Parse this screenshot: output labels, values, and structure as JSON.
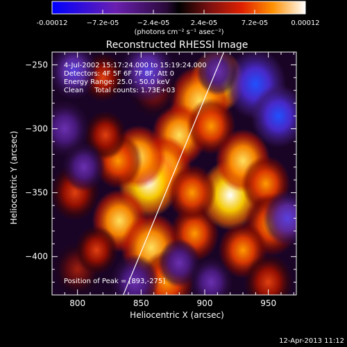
{
  "colorbar": {
    "ticks": [
      "-0.00012",
      "−7.2e-05",
      "−2.4e-05",
      "2.4e-05",
      "7.2e-05",
      "0.00012"
    ],
    "unit_label": "(photons cm⁻² s⁻¹ asec⁻²)",
    "range": [
      -0.00012,
      0.00012
    ]
  },
  "chart_data": {
    "type": "heatmap",
    "title": "Reconstructed RHESSI Image",
    "xlabel": "Heliocentric X (arcsec)",
    "ylabel": "Heliocentric Y (arcsec)",
    "xlim": [
      780,
      972
    ],
    "ylim": [
      -430,
      -240
    ],
    "xticks": [
      800,
      850,
      900,
      950
    ],
    "yticks": [
      -250,
      -300,
      -350,
      -400
    ],
    "limb_line": [
      [
        836,
        -430
      ],
      [
        915,
        -240
      ]
    ],
    "info": [
      "4-Jul-2002 15:17:24.000 to 15:19:24.000",
      "Detectors: 4F 5F 6F 7F 8F, Att 0",
      "Energy Range: 25.0 - 50.0 keV",
      "Clean     Total counts: 1.73E+03"
    ],
    "peak_label": "Position of Peak = [893,-275]",
    "peak": [
      893,
      -275
    ],
    "blobs": [
      {
        "x": 910,
        "y": -263,
        "v": 1.0,
        "s": 9
      },
      {
        "x": 896,
        "y": -278,
        "v": 0.85,
        "s": 10
      },
      {
        "x": 880,
        "y": -305,
        "v": 0.75,
        "s": 9
      },
      {
        "x": 868,
        "y": -330,
        "v": 0.8,
        "s": 9
      },
      {
        "x": 856,
        "y": -342,
        "v": 0.9,
        "s": 10
      },
      {
        "x": 848,
        "y": -322,
        "v": 0.75,
        "s": 9
      },
      {
        "x": 832,
        "y": -325,
        "v": 0.55,
        "s": 8
      },
      {
        "x": 822,
        "y": -305,
        "v": 0.5,
        "s": 7
      },
      {
        "x": 833,
        "y": -372,
        "v": 0.75,
        "s": 9
      },
      {
        "x": 858,
        "y": -393,
        "v": 0.85,
        "s": 10
      },
      {
        "x": 870,
        "y": -420,
        "v": 0.65,
        "s": 9
      },
      {
        "x": 892,
        "y": -382,
        "v": 0.6,
        "s": 8
      },
      {
        "x": 920,
        "y": -352,
        "v": 0.95,
        "s": 10
      },
      {
        "x": 930,
        "y": -325,
        "v": 0.85,
        "s": 9
      },
      {
        "x": 948,
        "y": -343,
        "v": 0.6,
        "s": 8
      },
      {
        "x": 952,
        "y": -375,
        "v": 0.7,
        "s": 9
      },
      {
        "x": 930,
        "y": -395,
        "v": 0.55,
        "s": 8
      },
      {
        "x": 905,
        "y": -298,
        "v": 0.7,
        "s": 8
      },
      {
        "x": 950,
        "y": -420,
        "v": 0.45,
        "s": 8
      },
      {
        "x": 798,
        "y": -350,
        "v": 0.45,
        "s": 8
      },
      {
        "x": 820,
        "y": -260,
        "v": 0.35,
        "s": 7
      },
      {
        "x": 860,
        "y": -270,
        "v": 0.3,
        "s": 8
      },
      {
        "x": 800,
        "y": -410,
        "v": 0.3,
        "s": 8
      },
      {
        "x": 890,
        "y": -350,
        "v": 0.55,
        "s": 8
      },
      {
        "x": 815,
        "y": -395,
        "v": 0.4,
        "s": 7
      },
      {
        "x": 797,
        "y": -255,
        "v": -0.4,
        "s": 8
      },
      {
        "x": 855,
        "y": -255,
        "v": -0.5,
        "s": 9
      },
      {
        "x": 940,
        "y": -265,
        "v": -0.65,
        "s": 10
      },
      {
        "x": 958,
        "y": -290,
        "v": -0.7,
        "s": 9
      },
      {
        "x": 910,
        "y": -255,
        "v": -0.3,
        "s": 7
      },
      {
        "x": 790,
        "y": -300,
        "v": -0.35,
        "s": 8
      },
      {
        "x": 805,
        "y": -330,
        "v": -0.3,
        "s": 7
      },
      {
        "x": 845,
        "y": -420,
        "v": -0.35,
        "s": 8
      },
      {
        "x": 965,
        "y": -370,
        "v": -0.4,
        "s": 8
      },
      {
        "x": 880,
        "y": -405,
        "v": -0.3,
        "s": 7
      },
      {
        "x": 905,
        "y": -420,
        "v": -0.35,
        "s": 7
      }
    ]
  },
  "footer": {
    "date": "12-Apr-2013 11:12"
  }
}
